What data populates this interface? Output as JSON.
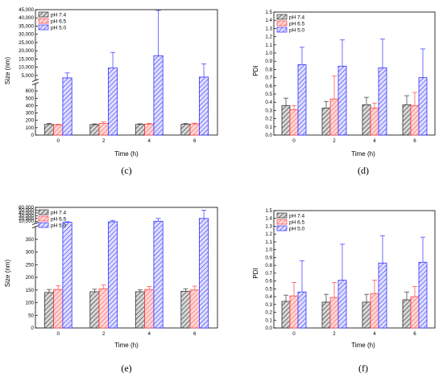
{
  "chart_data": [
    {
      "panel": "(c)",
      "type": "bar",
      "xlabel": "Time (h)",
      "ylabel": "Size (nm)",
      "categories": [
        "0",
        "2",
        "4",
        "6"
      ],
      "broken_axis": true,
      "lower_range": [
        0,
        700
      ],
      "lower_ticks": [
        "0",
        "100",
        "200",
        "300",
        "400",
        "500",
        "600"
      ],
      "upper_range": [
        2000,
        45000
      ],
      "upper_ticks": [
        "5,000",
        "10,000",
        "15,000",
        "20,000",
        "25,000",
        "30,000",
        "35,000",
        "40,000",
        "45,000"
      ],
      "legend": "top-left",
      "series": [
        {
          "name": "pH 7.4",
          "values": [
            145,
            142,
            145,
            148
          ],
          "errors": [
            12,
            10,
            8,
            8
          ],
          "color": "#555555"
        },
        {
          "name": "pH 6.5",
          "values": [
            140,
            158,
            150,
            152
          ],
          "errors": [
            8,
            20,
            10,
            10
          ],
          "color": "#ff6666"
        },
        {
          "name": "pH 5.0",
          "values": [
            3500,
            9500,
            17000,
            4000
          ],
          "errors": [
            3000,
            9500,
            27500,
            8000
          ],
          "color": "#4444ff"
        }
      ]
    },
    {
      "panel": "(d)",
      "type": "bar",
      "xlabel": "Time (h)",
      "ylabel": "PDI",
      "categories": [
        "0",
        "2",
        "4",
        "6"
      ],
      "ylim": [
        0,
        1.5
      ],
      "ticks": [
        "0.0",
        "0.1",
        "0.2",
        "0.3",
        "0.4",
        "0.5",
        "0.6",
        "0.7",
        "0.8",
        "0.9",
        "1.0",
        "1.1",
        "1.2",
        "1.3",
        "1.4",
        "1.5"
      ],
      "legend": "top-left",
      "series": [
        {
          "name": "pH 7.4",
          "values": [
            0.36,
            0.33,
            0.37,
            0.37
          ],
          "errors": [
            0.09,
            0.08,
            0.09,
            0.11
          ],
          "color": "#555555"
        },
        {
          "name": "pH 6.5",
          "values": [
            0.31,
            0.44,
            0.33,
            0.36
          ],
          "errors": [
            0.05,
            0.28,
            0.06,
            0.16
          ],
          "color": "#ff6666"
        },
        {
          "name": "pH 5.0",
          "values": [
            0.86,
            0.84,
            0.82,
            0.7
          ],
          "errors": [
            0.21,
            0.32,
            0.35,
            0.35
          ],
          "color": "#4444ff"
        }
      ]
    },
    {
      "panel": "(e)",
      "type": "bar",
      "xlabel": "Time (h)",
      "ylabel": "Size (nm)",
      "categories": [
        "0",
        "2",
        "4",
        "6"
      ],
      "broken_axis": true,
      "lower_range": [
        0,
        400
      ],
      "lower_ticks": [
        "0",
        "50",
        "100",
        "150",
        "200",
        "250",
        "300",
        "350"
      ],
      "upper_range": [
        2000,
        60000
      ],
      "upper_ticks": [
        "10,000",
        "20,000",
        "30,000",
        "40,000",
        "50,000",
        "60,000"
      ],
      "legend": "top-left",
      "series": [
        {
          "name": "pH 7.4",
          "values": [
            140,
            143,
            143,
            145
          ],
          "errors": [
            12,
            10,
            8,
            10
          ],
          "color": "#555555"
        },
        {
          "name": "pH 6.5",
          "values": [
            152,
            155,
            152,
            150
          ],
          "errors": [
            15,
            15,
            12,
            15
          ],
          "color": "#ff6666"
        },
        {
          "name": "pH 5.0",
          "values": [
            6000,
            8000,
            10000,
            20000
          ],
          "errors": [
            2000,
            5000,
            10000,
            30000
          ],
          "color": "#4444ff"
        }
      ]
    },
    {
      "panel": "(f)",
      "type": "bar",
      "xlabel": "Time (h)",
      "ylabel": "PDI",
      "categories": [
        "0",
        "2",
        "4",
        "6"
      ],
      "ylim": [
        0,
        1.5
      ],
      "ticks": [
        "0.0",
        "0.1",
        "0.2",
        "0.3",
        "0.4",
        "0.5",
        "0.6",
        "0.7",
        "0.8",
        "0.9",
        "1.0",
        "1.1",
        "1.2",
        "1.3",
        "1.4",
        "1.5"
      ],
      "legend": "top-left",
      "series": [
        {
          "name": "pH 7.4",
          "values": [
            0.34,
            0.33,
            0.33,
            0.36
          ],
          "errors": [
            0.08,
            0.1,
            0.1,
            0.1
          ],
          "color": "#555555"
        },
        {
          "name": "pH 6.5",
          "values": [
            0.41,
            0.39,
            0.44,
            0.4
          ],
          "errors": [
            0.17,
            0.19,
            0.17,
            0.13
          ],
          "color": "#ff6666"
        },
        {
          "name": "pH 5.0",
          "values": [
            0.46,
            0.61,
            0.83,
            0.84
          ],
          "errors": [
            0.4,
            0.46,
            0.35,
            0.32
          ],
          "color": "#4444ff"
        }
      ]
    }
  ]
}
